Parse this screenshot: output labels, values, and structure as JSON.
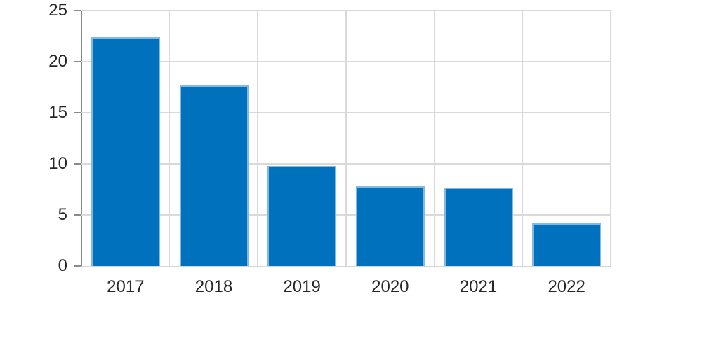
{
  "chart_data": {
    "type": "bar",
    "title": "",
    "xlabel": "",
    "ylabel": "",
    "categories": [
      "2017",
      "2018",
      "2019",
      "2020",
      "2021",
      "2022"
    ],
    "values": [
      22.4,
      17.7,
      9.8,
      7.8,
      7.7,
      4.2
    ],
    "ylim": [
      0,
      25
    ],
    "yticks": [
      0,
      5,
      10,
      15,
      20,
      25
    ],
    "legend": "none",
    "grid": {
      "horizontal": "on, every 5 units",
      "vertical": "on, at category boundaries"
    },
    "colors": {
      "bar_fill": "#0072BD",
      "bar_edge": "#84B7E1",
      "gridline": "#D9D9D9",
      "axis_spine": "#8A8A8A",
      "bottom_spine": "#D6D6D6",
      "tick_label": "#262626",
      "background": "#FFFFFF"
    }
  }
}
